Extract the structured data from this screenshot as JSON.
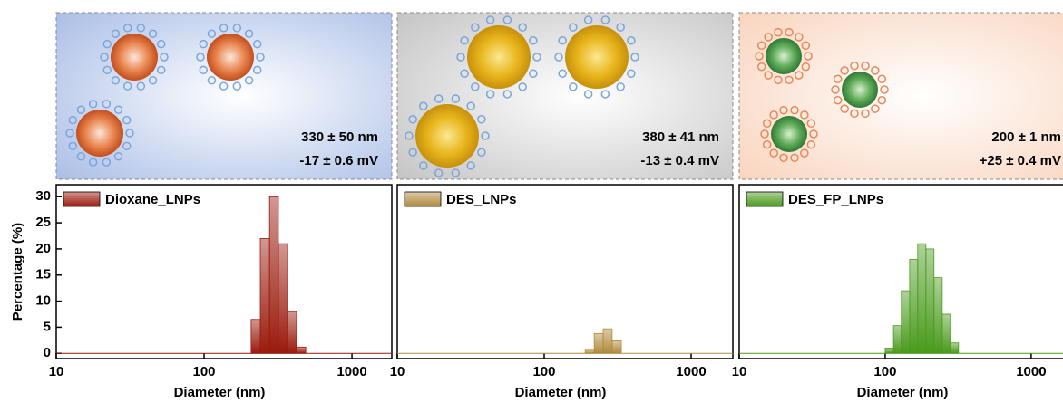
{
  "chart_data": [
    {
      "type": "histogram",
      "annotations": [
        "330 ± 50 nm",
        "-17 ± 0.6 mV"
      ],
      "background": "#a9bde6",
      "xlabel": "Diameter (nm)",
      "ylabel": "Percentage (%)",
      "log_x": true,
      "xlim": [
        10,
        1860
      ],
      "xticks": [
        10,
        100,
        1000
      ],
      "ylim": [
        -1,
        32.3
      ],
      "yticks": [
        0,
        5,
        10,
        15,
        20,
        25,
        30
      ],
      "bins": [
        208,
        240,
        277,
        318,
        367,
        422,
        487
      ],
      "series": [
        {
          "name": "Dioxane_LNPs",
          "color": "#9a1a0c",
          "values": [
            6.5,
            22,
            30,
            21,
            8,
            1.2
          ]
        }
      ]
    },
    {
      "type": "histogram",
      "annotations": [
        "380 ± 41 nm",
        "-13 ± 0.4 mV"
      ],
      "background": "#c4c4c4",
      "xlabel": "Diameter (nm)",
      "log_x": true,
      "xlim": [
        10,
        1923
      ],
      "xticks": [
        10,
        100,
        1000
      ],
      "ylim": [
        -1,
        32.3
      ],
      "bins": [
        190,
        219,
        252,
        290,
        335
      ],
      "series": [
        {
          "name": "DES_LNPs",
          "color": "#b08a3c",
          "values": [
            0.6,
            3.8,
            4.7,
            2.4
          ]
        }
      ]
    },
    {
      "type": "histogram",
      "annotations": [
        "200 ± 1    nm",
        "+25 ± 0.4 mV"
      ],
      "background": "#f9d4bd",
      "xlabel": "Diameter (nm)",
      "log_x": true,
      "xlim": [
        10,
        1990
      ],
      "xticks": [
        10,
        100,
        1000
      ],
      "ylim": [
        -1,
        32.3
      ],
      "bins": [
        100,
        114,
        129,
        147,
        167,
        190,
        216,
        246,
        280,
        318
      ],
      "series": [
        {
          "name": "DES_FP_LNPs",
          "color": "#4a9a1c",
          "values": [
            1,
            5.3,
            12,
            18,
            21,
            20,
            14.5,
            7.5,
            2
          ]
        }
      ]
    }
  ]
}
